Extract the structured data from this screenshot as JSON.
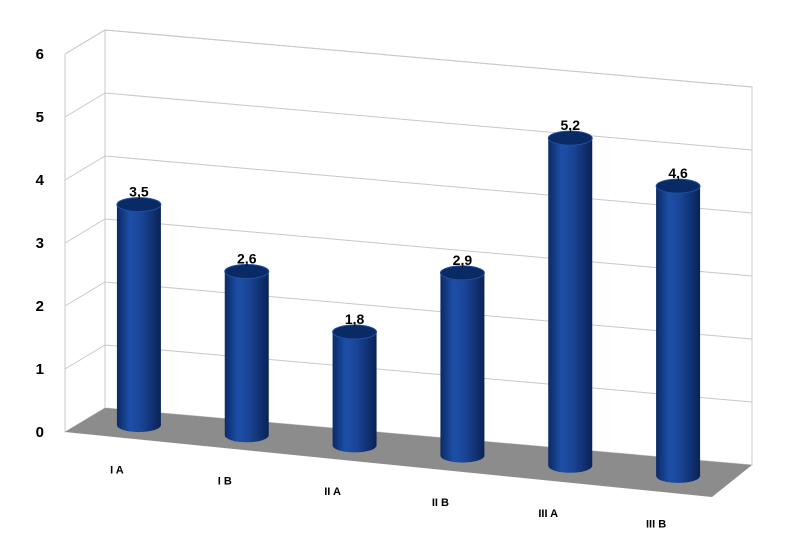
{
  "chart_data": {
    "type": "bar",
    "categories": [
      "I A",
      "I B",
      "II A",
      "II B",
      "III A",
      "III B"
    ],
    "values": [
      3.5,
      2.6,
      1.8,
      2.9,
      5.2,
      4.6
    ],
    "data_labels": [
      "3,5",
      "2,6",
      "1,8",
      "2,9",
      "5,2",
      "4,6"
    ],
    "y_ticks": [
      "0",
      "1",
      "2",
      "3",
      "4",
      "5",
      "6"
    ],
    "ylim": [
      0,
      6
    ],
    "title": "",
    "xlabel": "",
    "ylabel": "",
    "grid": true,
    "legend": "none",
    "bar_shape": "cylinder-3d",
    "colors": {
      "bar": "#163f8c",
      "bar_top": "#0a2a66",
      "floor": "#8c8c8c",
      "grid": "#c8c8c8"
    }
  }
}
